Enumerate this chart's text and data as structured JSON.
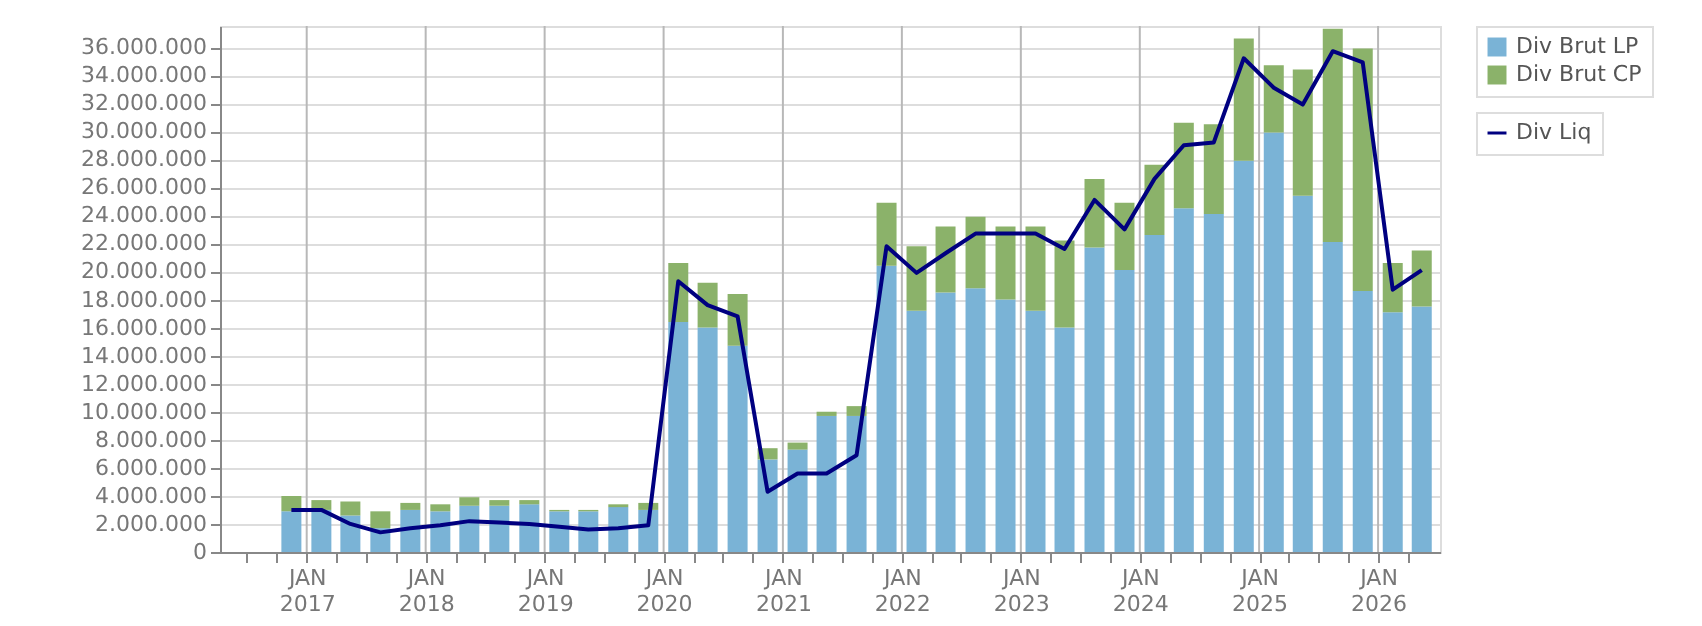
{
  "chart_data": {
    "type": "bar",
    "stacked": true,
    "legend": "right",
    "grid": true,
    "x": [
      "2016-11-15",
      "2017-02-15",
      "2017-05-15",
      "2017-08-15",
      "2017-11-15",
      "2018-02-15",
      "2018-05-15",
      "2018-08-15",
      "2018-11-15",
      "2019-02-15",
      "2019-05-15",
      "2019-08-15",
      "2019-11-15",
      "2020-02-15",
      "2020-05-15",
      "2020-08-15",
      "2020-11-15",
      "2021-02-15",
      "2021-05-15",
      "2021-08-15",
      "2021-11-15",
      "2022-02-15",
      "2022-05-15",
      "2022-08-15",
      "2022-11-15",
      "2023-02-15",
      "2023-05-15",
      "2023-08-15",
      "2023-11-15",
      "2024-02-15",
      "2024-05-15",
      "2024-08-15",
      "2024-11-15",
      "2025-02-15",
      "2025-05-15",
      "2025-08-15",
      "2025-11-15",
      "2026-02-15",
      "2026-05-15"
    ],
    "series": [
      {
        "name": "Div Brut LP",
        "color": "#7ab3d6",
        "values": [
          2900000,
          3000000,
          2600000,
          1700000,
          3000000,
          2900000,
          3300000,
          3300000,
          3400000,
          2900000,
          2900000,
          3200000,
          3000000,
          16400000,
          16000000,
          14700000,
          6600000,
          7300000,
          9700000,
          9700000,
          20400000,
          17200000,
          18500000,
          18800000,
          18000000,
          17200000,
          16000000,
          21700000,
          20100000,
          22600000,
          24500000,
          24100000,
          27900000,
          29900000,
          25400000,
          22100000,
          18600000,
          17100000,
          17500000
        ]
      },
      {
        "name": "Div Brut CP",
        "color": "#8bb26a",
        "values": [
          1100000,
          700000,
          1000000,
          1200000,
          500000,
          500000,
          600000,
          400000,
          300000,
          100000,
          100000,
          200000,
          500000,
          4200000,
          3200000,
          3700000,
          800000,
          500000,
          300000,
          700000,
          4500000,
          4600000,
          4700000,
          5100000,
          5200000,
          6000000,
          6200000,
          4900000,
          4800000,
          5000000,
          6100000,
          6400000,
          8700000,
          4800000,
          9000000,
          15200000,
          17300000,
          3500000,
          4000000
        ]
      },
      {
        "name": "Div Liq",
        "color": "#000080",
        "type": "line",
        "marker": "none",
        "line_style": "solid",
        "values": [
          3000000,
          3000000,
          2000000,
          1400000,
          1700000,
          1900000,
          2200000,
          2100000,
          2000000,
          1800000,
          1600000,
          1700000,
          1900000,
          19300000,
          17600000,
          16800000,
          4300000,
          5600000,
          5600000,
          6900000,
          21800000,
          19900000,
          21300000,
          22700000,
          22700000,
          22700000,
          21600000,
          25100000,
          23000000,
          26600000,
          29000000,
          29200000,
          35200000,
          33100000,
          31900000,
          35700000,
          34900000,
          18700000,
          20100000
        ]
      }
    ],
    "xlim": [
      "2016-04-10",
      "2026-07-10"
    ],
    "xticks": [
      {
        "value": "2016-07-01",
        "label": null
      },
      {
        "value": "2016-10-01",
        "label": null
      },
      {
        "value": "2017-01-01",
        "label": "JAN 2017"
      },
      {
        "value": "2017-04-01",
        "label": null
      },
      {
        "value": "2017-07-01",
        "label": null
      },
      {
        "value": "2017-10-01",
        "label": null
      },
      {
        "value": "2018-01-01",
        "label": "JAN 2018"
      },
      {
        "value": "2018-04-01",
        "label": null
      },
      {
        "value": "2018-07-01",
        "label": null
      },
      {
        "value": "2018-10-01",
        "label": null
      },
      {
        "value": "2019-01-01",
        "label": "JAN 2019"
      },
      {
        "value": "2019-04-01",
        "label": null
      },
      {
        "value": "2019-07-01",
        "label": null
      },
      {
        "value": "2019-10-01",
        "label": null
      },
      {
        "value": "2020-01-01",
        "label": "JAN 2020"
      },
      {
        "value": "2020-04-01",
        "label": null
      },
      {
        "value": "2020-07-01",
        "label": null
      },
      {
        "value": "2020-10-01",
        "label": null
      },
      {
        "value": "2021-01-01",
        "label": "JAN 2021"
      },
      {
        "value": "2021-04-01",
        "label": null
      },
      {
        "value": "2021-07-01",
        "label": null
      },
      {
        "value": "2021-10-01",
        "label": null
      },
      {
        "value": "2022-01-01",
        "label": "JAN 2022"
      },
      {
        "value": "2022-04-01",
        "label": null
      },
      {
        "value": "2022-07-01",
        "label": null
      },
      {
        "value": "2022-10-01",
        "label": null
      },
      {
        "value": "2023-01-01",
        "label": "JAN 2023"
      },
      {
        "value": "2023-04-01",
        "label": null
      },
      {
        "value": "2023-07-01",
        "label": null
      },
      {
        "value": "2023-10-01",
        "label": null
      },
      {
        "value": "2024-01-01",
        "label": "JAN 2024"
      },
      {
        "value": "2024-04-01",
        "label": null
      },
      {
        "value": "2024-07-01",
        "label": null
      },
      {
        "value": "2024-10-01",
        "label": null
      },
      {
        "value": "2025-01-01",
        "label": "JAN 2025"
      },
      {
        "value": "2025-04-01",
        "label": null
      },
      {
        "value": "2025-07-01",
        "label": null
      },
      {
        "value": "2025-10-01",
        "label": null
      },
      {
        "value": "2026-01-01",
        "label": "JAN 2026"
      },
      {
        "value": "2026-04-01",
        "label": null
      }
    ],
    "ylim": [
      0,
      37500000
    ],
    "yticks": [
      {
        "value": 0,
        "label": "0"
      },
      {
        "value": 2000000,
        "label": "2.000.000"
      },
      {
        "value": 4000000,
        "label": "4.000.000"
      },
      {
        "value": 6000000,
        "label": "6.000.000"
      },
      {
        "value": 8000000,
        "label": "8.000.000"
      },
      {
        "value": 10000000,
        "label": "10.000.000"
      },
      {
        "value": 12000000,
        "label": "12.000.000"
      },
      {
        "value": 14000000,
        "label": "14.000.000"
      },
      {
        "value": 16000000,
        "label": "16.000.000"
      },
      {
        "value": 18000000,
        "label": "18.000.000"
      },
      {
        "value": 20000000,
        "label": "20.000.000"
      },
      {
        "value": 22000000,
        "label": "22.000.000"
      },
      {
        "value": 24000000,
        "label": "24.000.000"
      },
      {
        "value": 26000000,
        "label": "26.000.000"
      },
      {
        "value": 28000000,
        "label": "28.000.000"
      },
      {
        "value": 30000000,
        "label": "30.000.000"
      },
      {
        "value": 32000000,
        "label": "32.000.000"
      },
      {
        "value": 34000000,
        "label": "34.000.000"
      },
      {
        "value": 36000000,
        "label": "36.000.000"
      }
    ]
  }
}
